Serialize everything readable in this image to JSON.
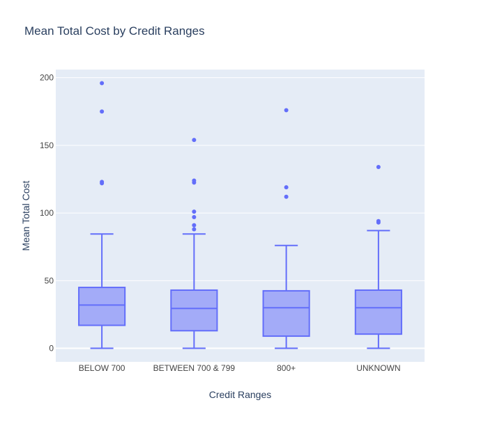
{
  "chart_data": {
    "type": "box",
    "title": "Mean Total Cost by Credit Ranges",
    "xlabel": "Credit Ranges",
    "ylabel": "Mean Total Cost",
    "ylim": [
      -10,
      206
    ],
    "yticks": [
      0,
      50,
      100,
      150,
      200
    ],
    "grid": true,
    "legend": "none",
    "colors": {
      "plot_bg": "#e5ecf6",
      "grid": "#ffffff",
      "box_line": "#636efa",
      "box_fill": "#a3abf8",
      "text": "#2a3f5f",
      "tick_text": "#444444"
    },
    "categories": [
      "BELOW 700",
      "BETWEEN 700 & 799",
      "800+",
      "UNKNOWN"
    ],
    "boxes": [
      {
        "category": "BELOW 700",
        "lowerfence": 0,
        "q1": 17,
        "median": 32,
        "q3": 45,
        "upperfence": 84.5,
        "outliers": [
          122,
          123,
          175,
          196
        ]
      },
      {
        "category": "BETWEEN 700 & 799",
        "lowerfence": 0,
        "q1": 13,
        "median": 29.5,
        "q3": 43,
        "upperfence": 84.5,
        "outliers": [
          88,
          91,
          97,
          101,
          122.5,
          124,
          154
        ]
      },
      {
        "category": "800+",
        "lowerfence": 0,
        "q1": 9,
        "median": 30,
        "q3": 42.5,
        "upperfence": 76,
        "outliers": [
          112,
          119,
          176
        ]
      },
      {
        "category": "UNKNOWN",
        "lowerfence": 0,
        "q1": 10.5,
        "median": 30,
        "q3": 43,
        "upperfence": 87,
        "outliers": [
          93,
          94,
          134
        ]
      }
    ]
  }
}
